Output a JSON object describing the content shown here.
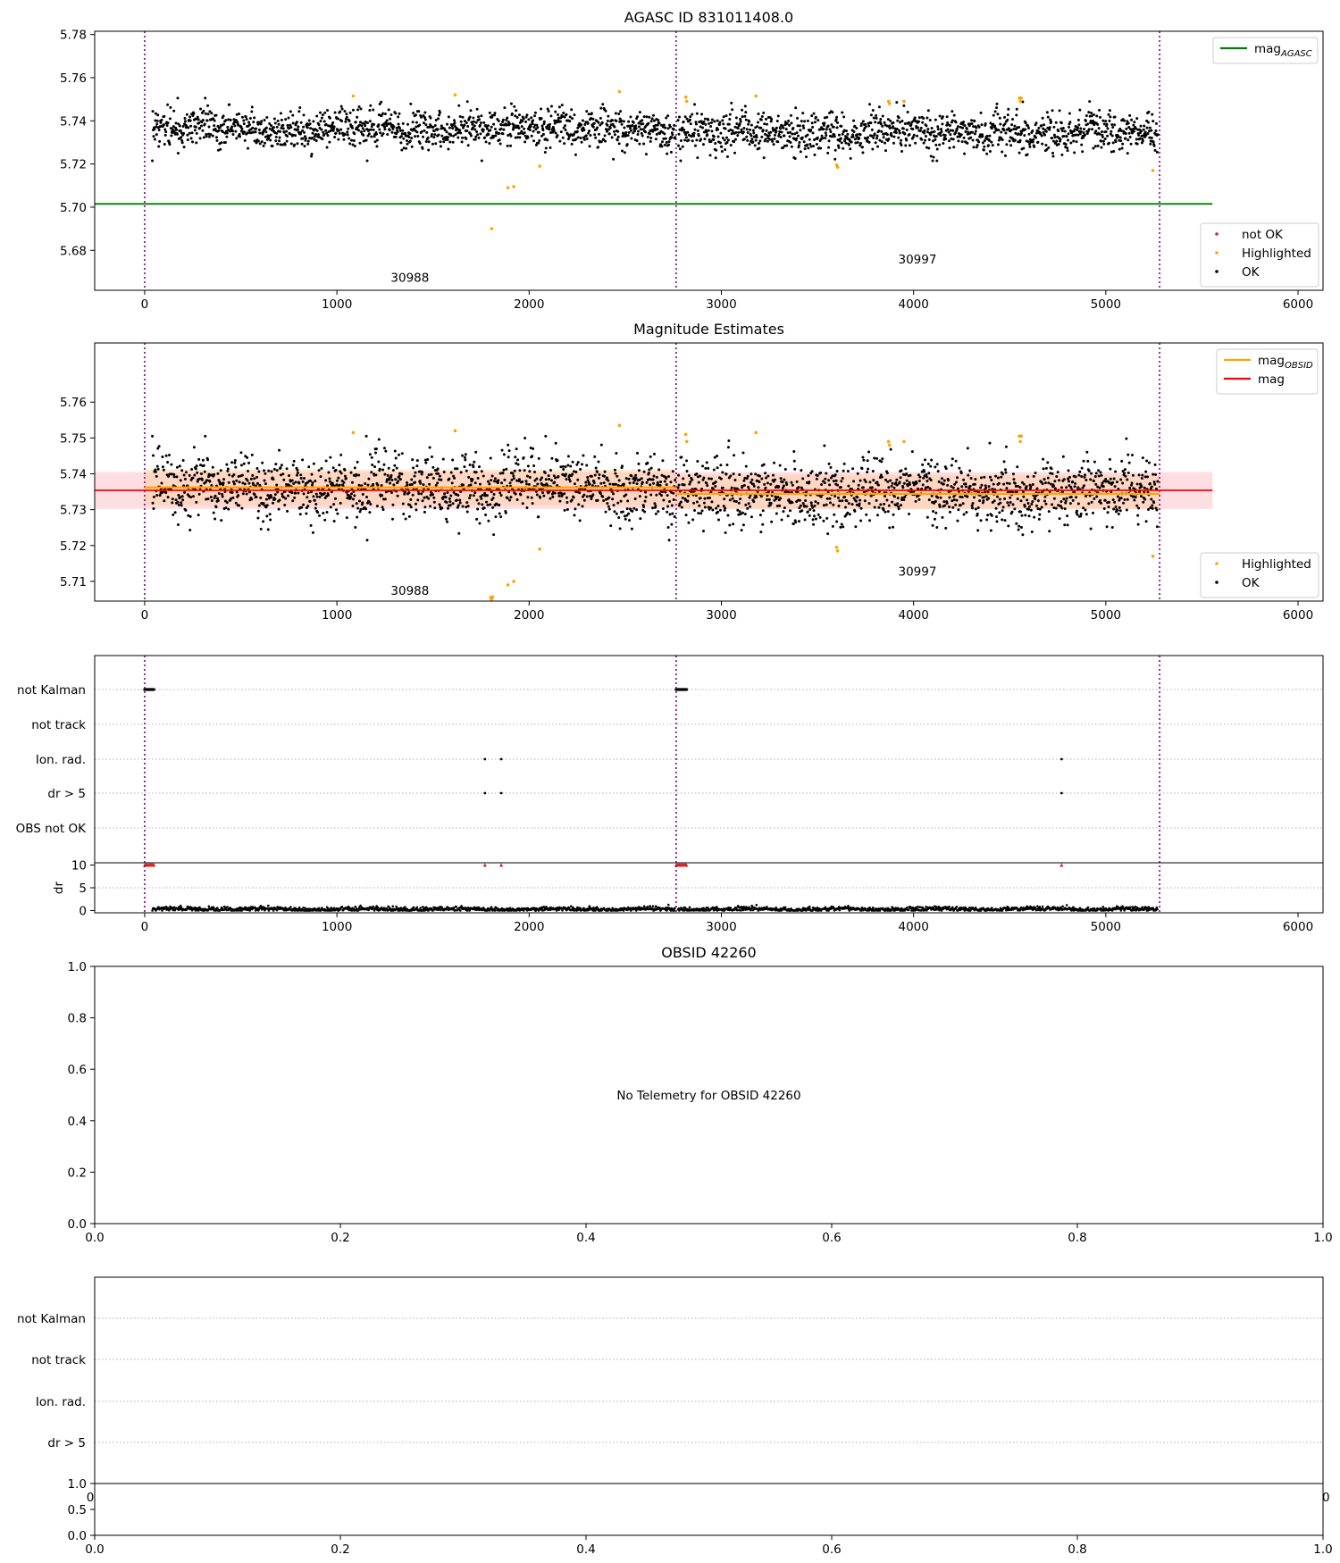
{
  "figure": {
    "colors": {
      "ok": "#000000",
      "not_ok": "#d62728",
      "highlighted": "#ffa500",
      "mag_agasc": "#008000",
      "mag_obsid": "#ffa500",
      "mag": "#ff0000",
      "band_mag": "#ffb6c1",
      "band_obsid": "#ffcc99",
      "obs_boundary": "#800080",
      "grid": "#b0b0b0"
    }
  },
  "chart_data": [
    {
      "id": "agasc",
      "type": "scatter",
      "title": "AGASC ID 831011408.0",
      "xlim": [
        -260,
        6130
      ],
      "ylim": [
        5.6615,
        5.7815
      ],
      "xticks": [
        0,
        1000,
        2000,
        3000,
        4000,
        5000,
        6000
      ],
      "yticks": [
        5.68,
        5.7,
        5.72,
        5.74,
        5.76,
        5.78
      ],
      "obs_boundaries": [
        0,
        2765,
        5280
      ],
      "obsids": [
        {
          "label": "30988",
          "x": 1380,
          "y": 5.6655
        },
        {
          "label": "30997",
          "x": 4020,
          "y": 5.674
        }
      ],
      "mag_agasc": {
        "name": "mag_AGASC",
        "value": 5.7015,
        "x_range": [
          -260,
          5555
        ]
      },
      "ok_series": {
        "name": "OK",
        "segments": [
          {
            "x_range": [
              40,
              2760
            ],
            "mean": 5.7365,
            "sd": 0.0045
          },
          {
            "x_range": [
              2775,
              5270
            ],
            "mean": 5.7345,
            "sd": 0.0045
          }
        ]
      },
      "highlighted": {
        "name": "Highlighted",
        "x": [
          1085,
          1615,
          1805,
          1890,
          1920,
          2055,
          2470,
          2815,
          2820,
          3180,
          3600,
          3605,
          3870,
          3875,
          3950,
          4550,
          4555,
          4560,
          5245
        ],
        "y": [
          5.7515,
          5.752,
          5.69,
          5.709,
          5.7095,
          5.719,
          5.7535,
          5.751,
          5.749,
          5.7515,
          5.7195,
          5.7185,
          5.749,
          5.748,
          5.749,
          5.7505,
          5.749,
          5.7505,
          5.717
        ]
      },
      "not_ok": {
        "name": "not OK",
        "x": [],
        "y": []
      },
      "legends": [
        {
          "position": "upper-right",
          "entries": [
            {
              "label": "mag",
              "subscript": "AGASC",
              "key": "mag_agasc"
            }
          ]
        },
        {
          "position": "lower-right",
          "entries": [
            {
              "label": "not OK",
              "key": "not_ok"
            },
            {
              "label": "Highlighted",
              "key": "highlighted"
            },
            {
              "label": "OK",
              "key": "ok"
            }
          ]
        }
      ]
    },
    {
      "id": "mag_estimates",
      "type": "scatter",
      "title": "Magnitude Estimates",
      "xlim": [
        -260,
        6130
      ],
      "ylim": [
        5.7045,
        5.7765
      ],
      "xticks": [
        0,
        1000,
        2000,
        3000,
        4000,
        5000,
        6000
      ],
      "yticks": [
        5.71,
        5.72,
        5.73,
        5.74,
        5.75,
        5.76
      ],
      "obs_boundaries": [
        0,
        2765,
        5280
      ],
      "obsids": [
        {
          "label": "30988",
          "x": 1380,
          "y": 5.7062
        },
        {
          "label": "30997",
          "x": 4020,
          "y": 5.7116
        }
      ],
      "mag": {
        "name": "mag",
        "value": 5.7354,
        "band": [
          5.7302,
          5.7405
        ],
        "x_range": [
          -260,
          5555
        ]
      },
      "mag_obsid": {
        "name": "mag_OBSID",
        "segments": [
          {
            "x_range": [
              0,
              2765
            ],
            "value": 5.7362,
            "band": [
              5.7312,
              5.7412
            ]
          },
          {
            "x_range": [
              2765,
              5280
            ],
            "value": 5.7344,
            "band": [
              5.7302,
              5.7396
            ]
          }
        ]
      },
      "highlighted": {
        "name": "Highlighted",
        "x": [
          1085,
          1615,
          1800,
          1805,
          1810,
          1890,
          1920,
          2055,
          2470,
          2815,
          2820,
          3180,
          3600,
          3605,
          3870,
          3875,
          3950,
          4550,
          4555,
          4560,
          5245
        ],
        "y": [
          5.7515,
          5.752,
          5.7055,
          5.705,
          5.7057,
          5.709,
          5.71,
          5.719,
          5.7535,
          5.751,
          5.749,
          5.7515,
          5.7195,
          5.7185,
          5.749,
          5.748,
          5.749,
          5.7505,
          5.749,
          5.7505,
          5.717
        ]
      },
      "legends": [
        {
          "position": "upper-right",
          "entries": [
            {
              "label": "mag",
              "subscript": "OBSID",
              "key": "mag_obsid"
            },
            {
              "label": "mag",
              "subscript": "",
              "key": "mag"
            }
          ]
        },
        {
          "position": "lower-right",
          "entries": [
            {
              "label": "Highlighted",
              "key": "highlighted"
            },
            {
              "label": "OK",
              "key": "ok"
            }
          ]
        }
      ]
    },
    {
      "id": "flags_30988_30997",
      "type": "scatter",
      "xlim": [
        -260,
        6130
      ],
      "xticks": [
        0,
        1000,
        2000,
        3000,
        4000,
        5000,
        6000
      ],
      "categories": [
        "not Kalman",
        "not track",
        "Ion. rad.",
        "dr > 5",
        "OBS not OK"
      ],
      "obs_boundaries": [
        0,
        2765,
        5280
      ],
      "flag_points": {
        "not Kalman": {
          "x_ranges": [
            [
              0,
              50
            ],
            [
              2765,
              2820
            ]
          ]
        },
        "not track": {
          "x_ranges": []
        },
        "Ion. rad.": {
          "x": [
            1770,
            1855,
            4770
          ]
        },
        "dr > 5": {
          "x": [
            1770,
            1855,
            4770
          ]
        },
        "OBS not OK": {
          "x": []
        }
      },
      "dr": {
        "ylabel": "dr",
        "ylim": [
          -0.5,
          10.5
        ],
        "yticks": [
          0,
          5,
          10
        ],
        "clipped_value": 10,
        "clipped_x": [
          [
            0,
            50
          ],
          [
            1770,
            1770
          ],
          [
            1855,
            1855
          ],
          [
            2765,
            2820
          ],
          [
            4770,
            4770
          ]
        ],
        "ok_segments": [
          [
            40,
            2760
          ],
          [
            2775,
            5270
          ]
        ],
        "typical": 0.3
      }
    },
    {
      "id": "obsid_42260",
      "type": "scatter",
      "title": "OBSID 42260",
      "xlim": [
        0,
        1
      ],
      "ylim": [
        0,
        1
      ],
      "xticks": [
        0.0,
        0.2,
        0.4,
        0.6,
        0.8,
        1.0
      ],
      "yticks": [
        0.0,
        0.2,
        0.4,
        0.6,
        0.8,
        1.0
      ],
      "message": "No Telemetry for OBSID 42260"
    },
    {
      "id": "flags_42260",
      "type": "scatter",
      "categories": [
        "not Kalman",
        "not track",
        "Ion. rad.",
        "dr > 5"
      ],
      "empty": true,
      "overlap_tick_labels": {
        "left": "0",
        "right": "0"
      },
      "dr_axis": {
        "ylim": [
          0,
          1
        ],
        "yticks": [
          0.0,
          0.5,
          1.0
        ],
        "xticks": [
          0.0,
          0.2,
          0.4,
          0.6,
          0.8,
          1.0
        ]
      }
    }
  ]
}
